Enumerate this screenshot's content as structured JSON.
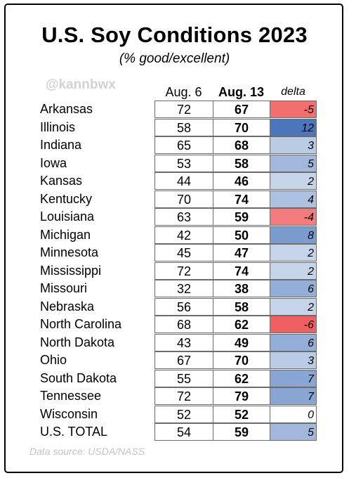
{
  "title": "U.S. Soy Conditions 2023",
  "subtitle": "(% good/excellent)",
  "watermark": "@kannbwx",
  "source": "Data source: USDA/NASS",
  "colors": {
    "neg_strong": "#f06060",
    "pos_strong": "#4a77bc",
    "neutral": "#ffffff"
  },
  "chart_data": {
    "type": "table",
    "title": "U.S. Soy Conditions 2023",
    "subtitle": "(% good/excellent)",
    "columns": [
      "Aug. 6",
      "Aug. 13",
      "delta"
    ],
    "rows": [
      {
        "state": "Arkansas",
        "aug6": "72",
        "aug13": "67",
        "delta": "-5"
      },
      {
        "state": "Illinois",
        "aug6": "58",
        "aug13": "70",
        "delta": "12"
      },
      {
        "state": "Indiana",
        "aug6": "65",
        "aug13": "68",
        "delta": "3"
      },
      {
        "state": "Iowa",
        "aug6": "53",
        "aug13": "58",
        "delta": "5"
      },
      {
        "state": "Kansas",
        "aug6": "44",
        "aug13": "46",
        "delta": "2"
      },
      {
        "state": "Kentucky",
        "aug6": "70",
        "aug13": "74",
        "delta": "4"
      },
      {
        "state": "Louisiana",
        "aug6": "63",
        "aug13": "59",
        "delta": "-4"
      },
      {
        "state": "Michigan",
        "aug6": "42",
        "aug13": "50",
        "delta": "8"
      },
      {
        "state": "Minnesota",
        "aug6": "45",
        "aug13": "47",
        "delta": "2"
      },
      {
        "state": "Mississippi",
        "aug6": "72",
        "aug13": "74",
        "delta": "2"
      },
      {
        "state": "Missouri",
        "aug6": "32",
        "aug13": "38",
        "delta": "6"
      },
      {
        "state": "Nebraska",
        "aug6": "56",
        "aug13": "58",
        "delta": "2"
      },
      {
        "state": "North Carolina",
        "aug6": "68",
        "aug13": "62",
        "delta": "-6"
      },
      {
        "state": "North Dakota",
        "aug6": "43",
        "aug13": "49",
        "delta": "6"
      },
      {
        "state": "Ohio",
        "aug6": "67",
        "aug13": "70",
        "delta": "3"
      },
      {
        "state": "South Dakota",
        "aug6": "55",
        "aug13": "62",
        "delta": "7"
      },
      {
        "state": "Tennessee",
        "aug6": "72",
        "aug13": "79",
        "delta": "7"
      },
      {
        "state": "Wisconsin",
        "aug6": "52",
        "aug13": "52",
        "delta": "0"
      },
      {
        "state": "U.S. TOTAL",
        "aug6": "54",
        "aug13": "59",
        "delta": "5"
      }
    ]
  }
}
